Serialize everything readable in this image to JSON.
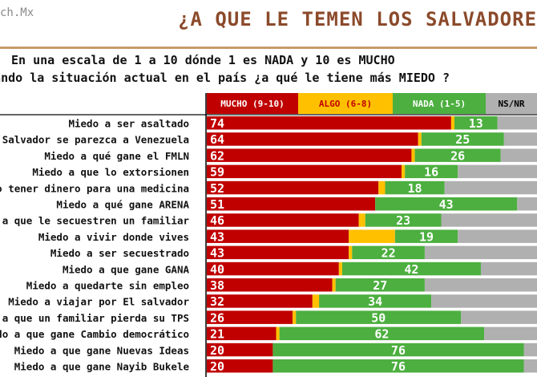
{
  "header": {
    "brand": "ch.Mx",
    "title": "¿A QUE LE TEMEN LOS SALVADOREÑ",
    "question_line1": "En una escala de 1 a 10 dónde 1 es NADA y 10 es MUCHO",
    "question_line2": "erando la situación actual en el país ¿a qué le tiene más MIEDO ?"
  },
  "colors": {
    "mucho": "#c00000",
    "algo": "#ffc000",
    "nada": "#4caf3f",
    "nsnr": "#b0b0b0",
    "title": "#8b4a2b"
  },
  "chart_data": {
    "type": "bar",
    "orientation": "horizontal",
    "stacked": true,
    "legend": [
      "MUCHO (9-10)",
      "ALGO (6-8)",
      "NADA (1-5)",
      "NS/NR"
    ],
    "legend_placement": "top",
    "categories": [
      "Miedo a ser asaltado",
      "Salvador se parezca a Venezuela",
      "Miedo a qué gane el FMLN",
      "Miedo a que lo extorsionen",
      "o tener dinero para una medicina",
      "Miedo a qué gane ARENA",
      "a que le secuestren un familiar",
      "Miedo a vivir donde vives",
      "Miedo a ser secuestrado",
      "Miedo a que gane GANA",
      "Miedo a quedarte sin empleo",
      "Miedo a viajar por El salvador",
      "a que un familiar pierda su TPS",
      "do a que gane Cambio democrático",
      "Miedo a que gane Nuevas Ideas",
      "Miedo a que gane Nayib Bukele"
    ],
    "series": [
      {
        "name": "MUCHO (9-10)",
        "values": [
          74,
          64,
          62,
          59,
          52,
          51,
          46,
          43,
          43,
          40,
          38,
          32,
          26,
          21,
          20,
          20
        ]
      },
      {
        "name": "ALGO (6-8)",
        "values": [
          1,
          1,
          1,
          1,
          2,
          0,
          2,
          14,
          1,
          1,
          1,
          2,
          1,
          1,
          0,
          0
        ]
      },
      {
        "name": "NADA (1-5)",
        "values": [
          13,
          25,
          26,
          16,
          18,
          43,
          23,
          19,
          22,
          42,
          27,
          34,
          50,
          62,
          76,
          76
        ]
      },
      {
        "name": "NS/NR",
        "values": [
          12,
          10,
          11,
          24,
          28,
          6,
          29,
          24,
          34,
          17,
          34,
          32,
          23,
          16,
          4,
          4
        ]
      }
    ],
    "xlim": [
      0,
      100
    ]
  }
}
